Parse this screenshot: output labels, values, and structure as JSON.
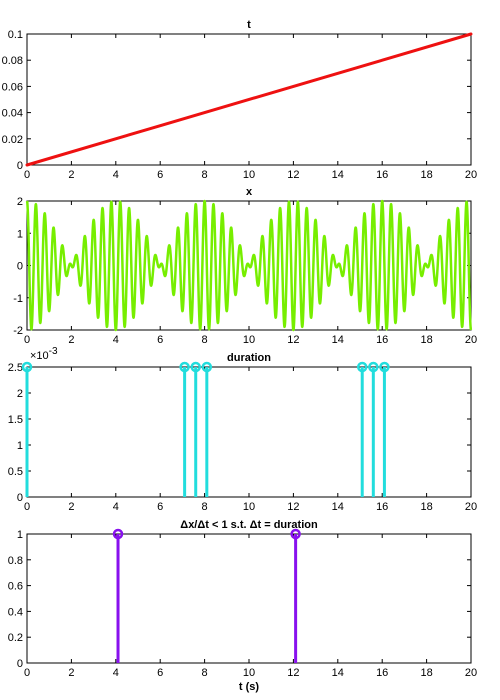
{
  "chart_data": [
    {
      "type": "line",
      "title": "t",
      "xlim": [
        0,
        20
      ],
      "ylim": [
        0,
        0.1
      ],
      "xticks": [
        "0",
        "2",
        "4",
        "6",
        "8",
        "10",
        "12",
        "14",
        "16",
        "18",
        "20"
      ],
      "yticks": [
        "0",
        "0.02",
        "0.04",
        "0.06",
        "0.08",
        "0.1"
      ],
      "color": "#ee1111",
      "series": [
        {
          "x": [
            0,
            20
          ],
          "y": [
            0,
            0.1
          ]
        }
      ]
    },
    {
      "type": "line",
      "title": "x",
      "xlim": [
        0,
        20
      ],
      "ylim": [
        -2,
        2
      ],
      "xticks": [
        "0",
        "2",
        "4",
        "6",
        "8",
        "10",
        "12",
        "14",
        "16",
        "18",
        "20"
      ],
      "yticks": [
        "-2",
        "-1",
        "0",
        "1",
        "2"
      ],
      "color": "#77ee00",
      "signal": {
        "carrier_hz": 2.5,
        "envelope_hz": 0.125,
        "amplitude": 2,
        "x_start": 0,
        "x_end": 20
      }
    },
    {
      "type": "stem",
      "title": "duration",
      "xlim": [
        0,
        20
      ],
      "ylim": [
        0,
        0.0025
      ],
      "xticks": [
        "0",
        "2",
        "4",
        "6",
        "8",
        "10",
        "12",
        "14",
        "16",
        "18",
        "20"
      ],
      "yticks": [
        "0",
        "0.5",
        "1",
        "1.5",
        "2",
        "2.5"
      ],
      "yexponent": "-3",
      "color": "#22dddd",
      "x": [
        0,
        7.1,
        7.6,
        8.1,
        15.1,
        15.6,
        16.1
      ],
      "y": [
        0.0025,
        0.0025,
        0.0025,
        0.0025,
        0.0025,
        0.0025,
        0.0025
      ]
    },
    {
      "type": "stem",
      "title": "Δx/Δt < 1 s.t. Δt = duration",
      "xlabel": "t (s)",
      "xlim": [
        0,
        20
      ],
      "ylim": [
        0,
        1
      ],
      "xticks": [
        "0",
        "2",
        "4",
        "6",
        "8",
        "10",
        "12",
        "14",
        "16",
        "18",
        "20"
      ],
      "yticks": [
        "0",
        "0.2",
        "0.4",
        "0.6",
        "0.8",
        "1"
      ],
      "color": "#8811ee",
      "x": [
        4.1,
        12.1
      ],
      "y": [
        1,
        1
      ]
    }
  ]
}
